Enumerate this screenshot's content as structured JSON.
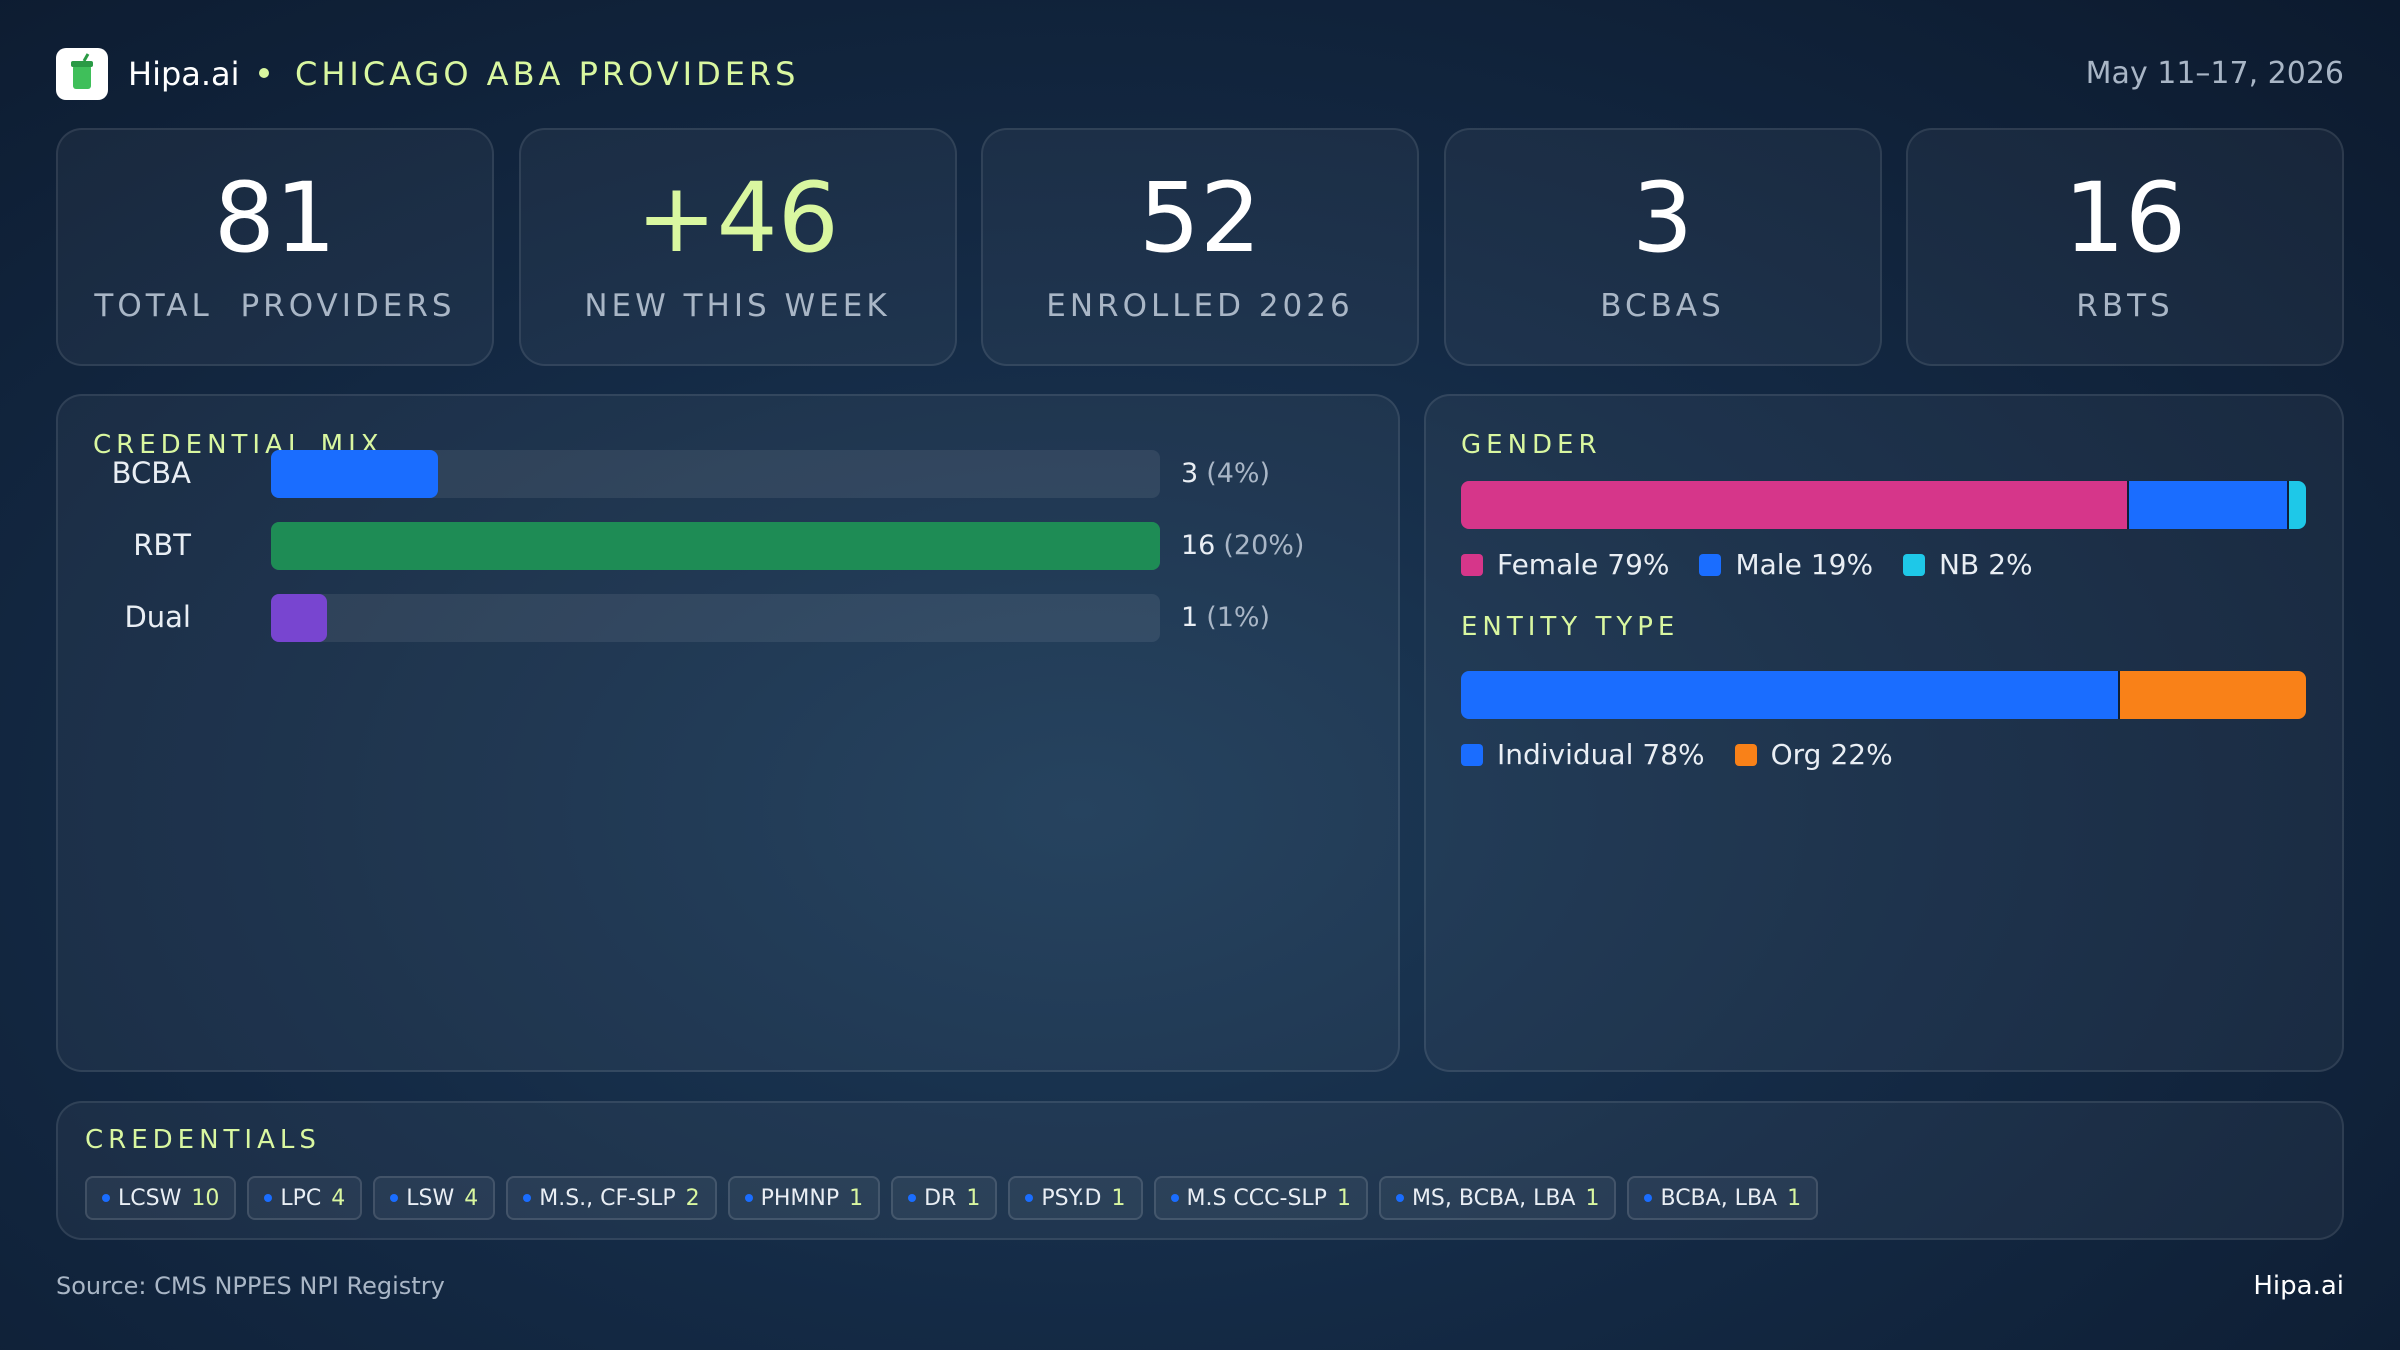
{
  "header": {
    "brand": "Hipa.ai",
    "title": "CHICAGO ABA PROVIDERS",
    "date": "May 11–17, 2026"
  },
  "kpis": [
    {
      "value": 81,
      "label": "TOTAL  PROVIDERS",
      "color": "#ffffff"
    },
    {
      "value": "+46",
      "label": "NEW THIS WEEK",
      "color": "#d9f7a0"
    },
    {
      "value": 52,
      "label": "ENROLLED 2026",
      "color": "#ffffff"
    },
    {
      "value": 3,
      "label": "BCBAS",
      "color": "#ffffff"
    },
    {
      "value": 16,
      "label": "RBTS",
      "color": "#ffffff"
    }
  ],
  "credential_mix": {
    "title": "CREDENTIAL MIX",
    "rows": [
      {
        "label": "BCBA",
        "value": 3,
        "share": "(4%)",
        "color": "#1a6dff"
      },
      {
        "label": "RBT",
        "value": 16,
        "share": "(20%)",
        "color": "#1e8c55"
      },
      {
        "label": "Dual",
        "value": 1,
        "share": "(1%)",
        "color": "#7845d0"
      }
    ]
  },
  "gender": {
    "title": "GENDER",
    "segments": [
      {
        "name": "Female",
        "value": 79,
        "value_label": "79%",
        "color": "#d6368a"
      },
      {
        "name": "Male",
        "value": 19,
        "value_label": "19%",
        "color": "#1a6dff"
      },
      {
        "name": "NB",
        "value": 2,
        "value_label": "2%",
        "color": "#1ec8e8"
      }
    ]
  },
  "entity_type": {
    "title": "ENTITY TYPE",
    "segments": [
      {
        "name": "Individual",
        "value": 78,
        "value_label": "78%",
        "color": "#1a6dff"
      },
      {
        "name": "Org",
        "value": 22,
        "value_label": "22%",
        "color": "#f98118"
      }
    ]
  },
  "credentials": {
    "title": "CREDENTIALS",
    "items": [
      {
        "label": "LCSW",
        "count": 10
      },
      {
        "label": "LPC",
        "count": 4
      },
      {
        "label": "LSW",
        "count": 4
      },
      {
        "label": "M.S., CF-SLP",
        "count": 2
      },
      {
        "label": "PHMNP",
        "count": 1
      },
      {
        "label": "DR",
        "count": 1
      },
      {
        "label": "PSY.D",
        "count": 1
      },
      {
        "label": "M.S CCC-SLP",
        "count": 1
      },
      {
        "label": "MS, BCBA, LBA",
        "count": 1
      },
      {
        "label": "BCBA, LBA",
        "count": 1
      }
    ]
  },
  "footer": {
    "source": "Source: CMS NPPES NPI Registry",
    "brand": "Hipa.ai"
  }
}
